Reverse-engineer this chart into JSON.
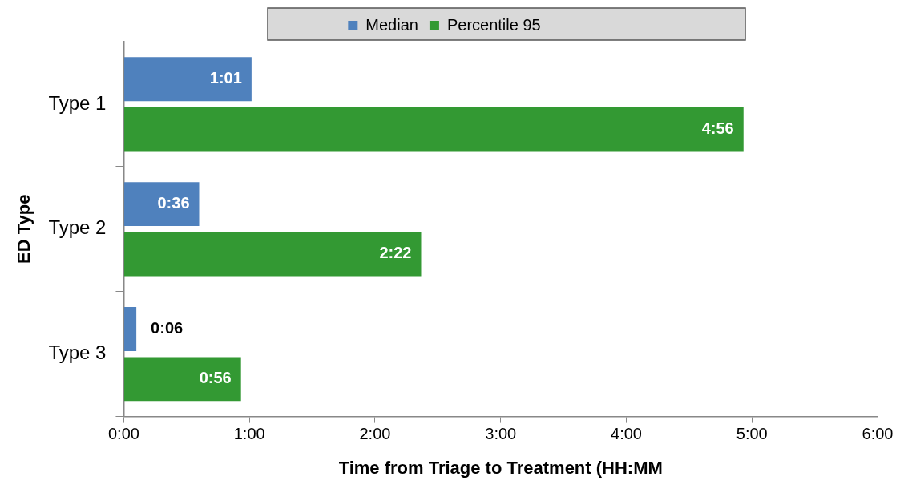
{
  "chart_data": {
    "type": "bar",
    "orientation": "horizontal",
    "xlabel": "Time from Triage to Treatment (HH:MM",
    "ylabel": "ED Type",
    "categories": [
      "Type 1",
      "Type 2",
      "Type 3"
    ],
    "series": [
      {
        "name": "Median",
        "color": "#4f81bd",
        "values": [
          1.017,
          0.6,
          0.1
        ],
        "value_labels": [
          "1:01",
          "0:36",
          "0:06"
        ]
      },
      {
        "name": "Percentile 95",
        "color": "#339933",
        "values": [
          4.933,
          2.367,
          0.933
        ],
        "value_labels": [
          "4:56",
          "2:22",
          "0:56"
        ]
      }
    ],
    "xlim": [
      0,
      6
    ],
    "xticks": [
      {
        "value": 0,
        "label": "0:00"
      },
      {
        "value": 1,
        "label": "1:00"
      },
      {
        "value": 2,
        "label": "2:00"
      },
      {
        "value": 3,
        "label": "3:00"
      },
      {
        "value": 4,
        "label": "4:00"
      },
      {
        "value": 5,
        "label": "5:00"
      },
      {
        "value": 6,
        "label": "6:00"
      }
    ],
    "grid": false,
    "legend": "top"
  }
}
